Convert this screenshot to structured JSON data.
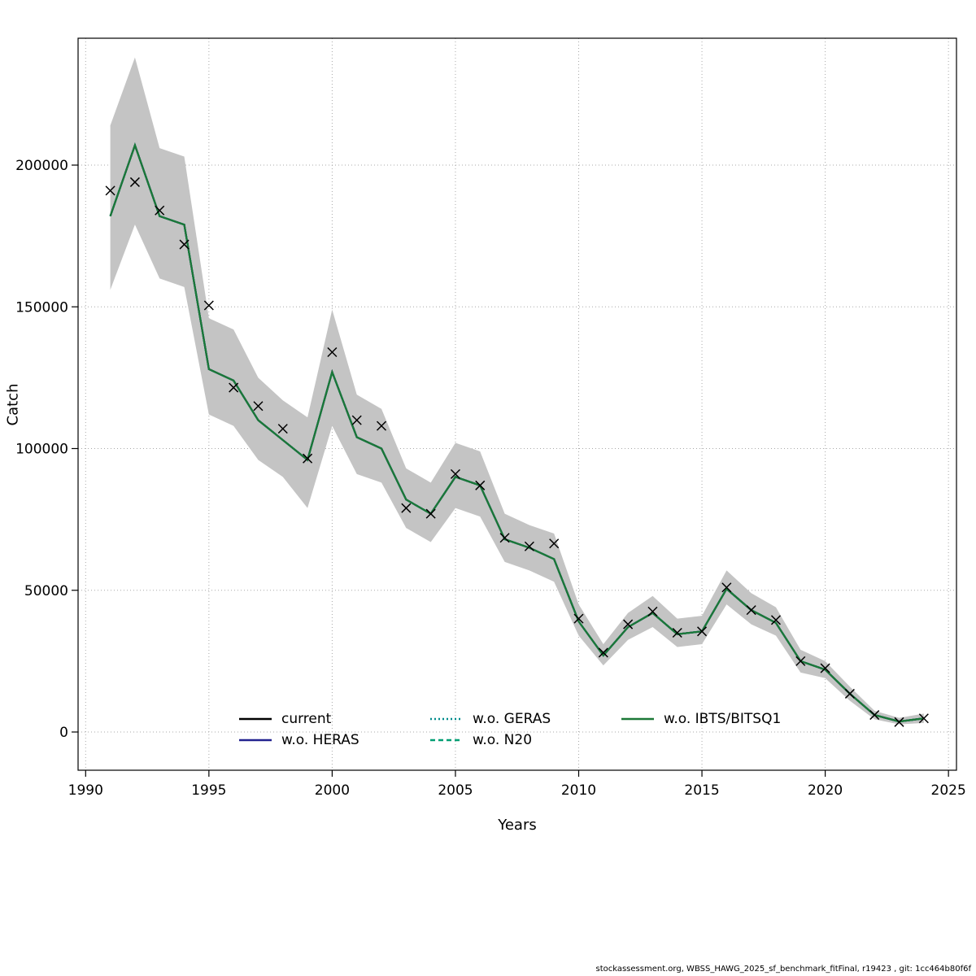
{
  "footer": {
    "text": "stockassessment.org, WBSS_HAWG_2025_sf_benchmark_fitFinal, r19423 , git: 1cc464b80f6f"
  },
  "chart_data": {
    "type": "line",
    "title": "",
    "xlabel": "Years",
    "ylabel": "Catch",
    "xlim": [
      1990,
      2025
    ],
    "ylim": [
      0,
      240000
    ],
    "x_ticks": [
      1990,
      1995,
      2000,
      2005,
      2010,
      2015,
      2020,
      2025
    ],
    "y_ticks": [
      0,
      50000,
      100000,
      150000,
      200000
    ],
    "grid": "dotted",
    "legend_position": "bottom-inside",
    "band_color": "#c4c4c4",
    "marker": "x",
    "years": [
      1991,
      1992,
      1993,
      1994,
      1995,
      1996,
      1997,
      1998,
      1999,
      2000,
      2001,
      2002,
      2003,
      2004,
      2005,
      2006,
      2007,
      2008,
      2009,
      2010,
      2011,
      2012,
      2013,
      2014,
      2015,
      2016,
      2017,
      2018,
      2019,
      2020,
      2021,
      2022,
      2023,
      2024
    ],
    "observed": [
      191000,
      194000,
      184000,
      172000,
      150500,
      121500,
      115000,
      107000,
      96500,
      134000,
      110000,
      108000,
      79000,
      77000,
      91000,
      87000,
      68500,
      65500,
      66500,
      40000,
      28000,
      38000,
      42500,
      35000,
      35500,
      51000,
      43000,
      39500,
      25000,
      22500,
      13500,
      6000,
      3500,
      4800
    ],
    "fit": [
      182000,
      207000,
      182000,
      179000,
      128000,
      124000,
      110000,
      103000,
      96000,
      127000,
      104000,
      100000,
      82000,
      77000,
      90000,
      87000,
      68000,
      65000,
      61000,
      39000,
      27000,
      37000,
      42000,
      34500,
      35500,
      50500,
      43000,
      38500,
      25000,
      22000,
      13500,
      6000,
      3700,
      4800
    ],
    "band_upper": [
      214000,
      238000,
      206000,
      203000,
      146000,
      142000,
      125000,
      117000,
      111000,
      149000,
      119000,
      114000,
      93000,
      88000,
      102000,
      99000,
      77000,
      73000,
      70000,
      45000,
      31000,
      42000,
      48000,
      40000,
      41000,
      57000,
      49000,
      44000,
      29000,
      25000,
      16000,
      7500,
      5000,
      6500
    ],
    "band_lower": [
      156000,
      179000,
      160000,
      157000,
      112000,
      108000,
      96000,
      90000,
      79000,
      108000,
      91000,
      88000,
      72000,
      67000,
      79000,
      76000,
      60000,
      57000,
      53000,
      34000,
      23500,
      32500,
      37000,
      30000,
      31000,
      45000,
      38000,
      34000,
      21000,
      19000,
      11000,
      4500,
      2700,
      3200
    ],
    "series": [
      {
        "name": "current",
        "color": "#000000",
        "dash": "solid"
      },
      {
        "name": "w.o. HERAS",
        "color": "#22228f",
        "dash": "solid"
      },
      {
        "name": "w.o. GERAS",
        "color": "#008b8b",
        "dash": "dotted"
      },
      {
        "name": "w.o. N20",
        "color": "#009e73",
        "dash": "dashed"
      },
      {
        "name": "w.o. IBTS/BITSQ1",
        "color": "#1b7837",
        "dash": "solid"
      }
    ]
  }
}
